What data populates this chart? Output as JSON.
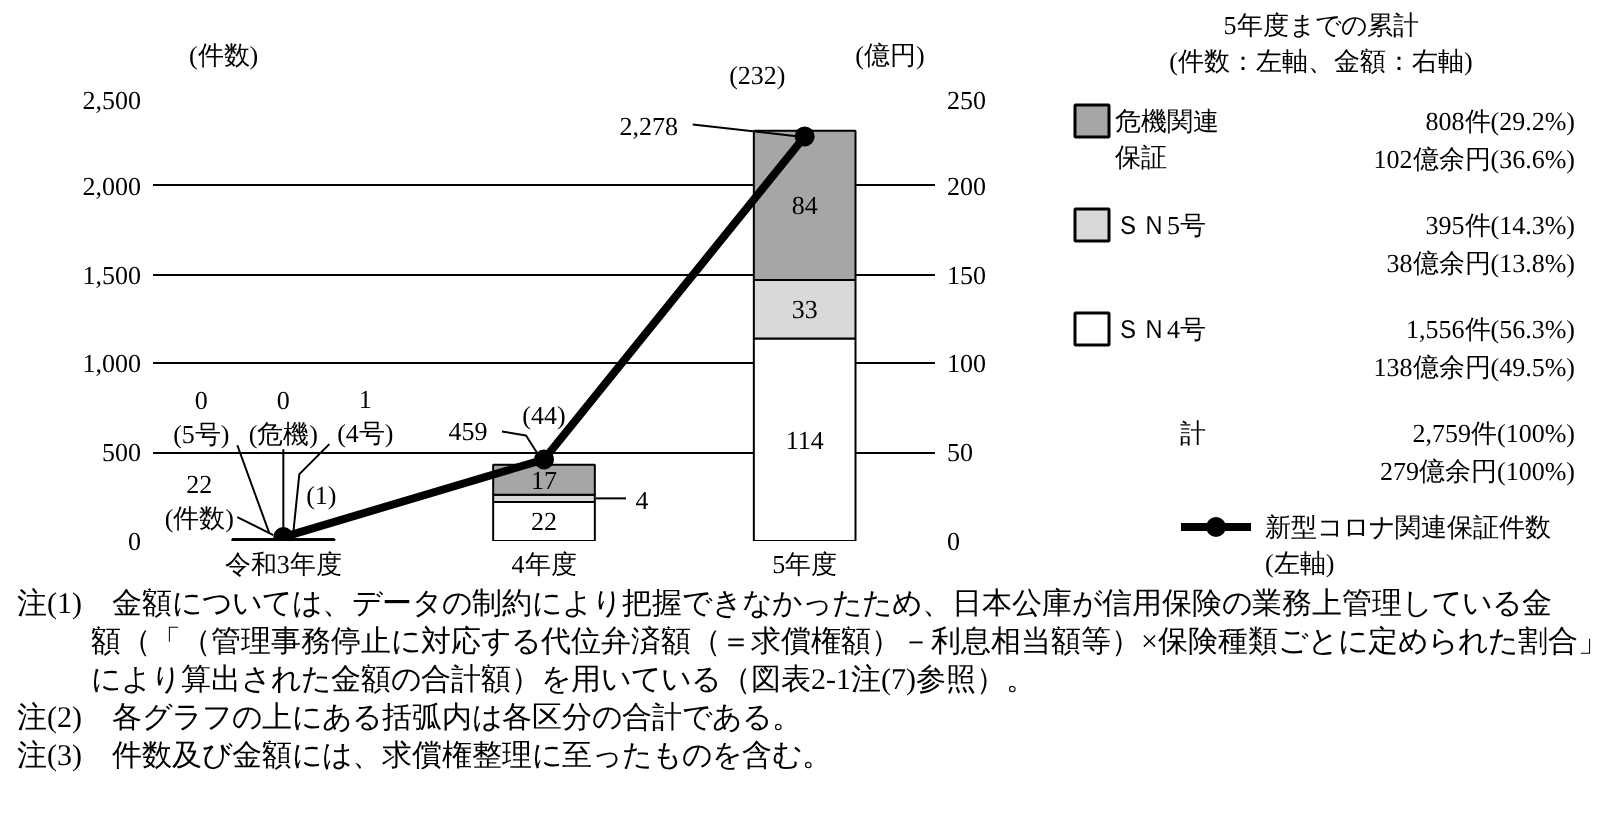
{
  "chart_data": {
    "type": "bar",
    "stacked": true,
    "categories": [
      "令和3年度",
      "4年度",
      "5年度"
    ],
    "series": [
      {
        "name": "ＳＮ4号",
        "color": "#ffffff",
        "axis": "y2",
        "values": [
          1,
          22,
          114
        ],
        "value_labels": [
          "1\n(4号)",
          "22",
          "114"
        ]
      },
      {
        "name": "ＳＮ5号",
        "color": "#d9d9d9",
        "axis": "y2",
        "values": [
          0,
          4,
          33
        ],
        "value_labels": [
          "0\n(5号)",
          "4",
          "33"
        ]
      },
      {
        "name": "危機関連保証",
        "color": "#a6a6a6",
        "axis": "y2",
        "values": [
          0,
          17,
          84
        ],
        "value_labels": [
          "0\n(危機)",
          "17",
          "84"
        ]
      },
      {
        "name": "新型コロナ関連保証件数\n(左軸)",
        "type": "line",
        "color": "#000000",
        "values": [
          22,
          459,
          2278
        ],
        "value_labels": [
          "22\n(件数)",
          "459",
          "2,278"
        ]
      }
    ],
    "totals": [
      "(1)",
      "(44)",
      "(232)"
    ],
    "ylabel": "(件数)",
    "y2label": "(億円)",
    "ylim": [
      0,
      2500
    ],
    "yticks": [
      0,
      500,
      {
        "value": 1000,
        "label": "1,000"
      },
      {
        "value": 1500,
        "label": "1,500"
      },
      {
        "value": 2000,
        "label": "2,000"
      },
      {
        "value": 2500,
        "label": "2,500"
      }
    ],
    "y2lim": [
      0,
      250
    ],
    "y2ticks": [
      0,
      50,
      100,
      150,
      200,
      250
    ],
    "grid": "y",
    "marker": "circle",
    "legend": "right",
    "legend_title": "5年度までの累計\n(件数：左軸、金額：右軸)",
    "annotations": [
      "808件(29.2%)\n102億余円(36.6%)",
      "395件(14.3%)\n38億余円(13.8%)",
      "1,556件(56.3%)\n138億余円(49.5%)",
      "計",
      "2,759件(100%)\n279億余円(100%)",
      "注(1)　金額については、データの制約により把握できなかったため、日本公庫が信用保険の業務上管理している金額（「（管理事務停止に対応する代位弁済額（＝求償権額）－利息相当額等）×保険種類ごとに定められた割合」により算出された金額の合計額）を用いている（図表2-1注(7)参照）。",
      "注(2)　各グラフの上にある括弧内は各区分の合計である。",
      "注(3)　件数及び金額には、求償権整理に至ったものを含む。"
    ]
  }
}
